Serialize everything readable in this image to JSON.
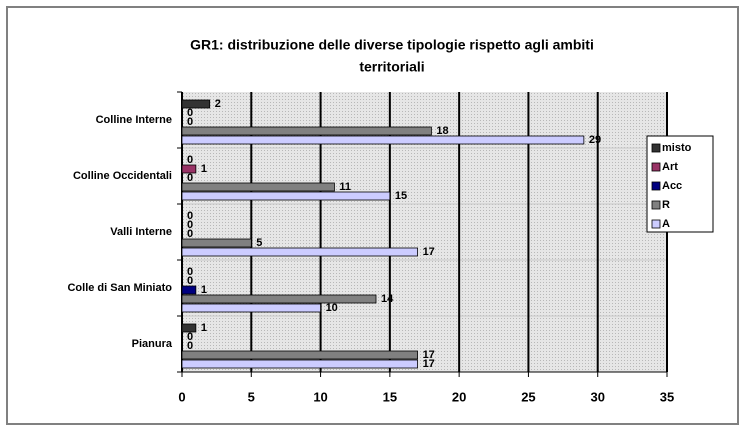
{
  "chart_data": {
    "type": "barh",
    "title": [
      "GR1: distribuzione delle diverse tipologie rispetto agli ambiti",
      "territoriali"
    ],
    "categories": [
      "Colline Interne",
      "Colline Occidentali",
      "Valli Interne",
      "Colle di San Miniato",
      "Pianura"
    ],
    "series": [
      {
        "name": "misto",
        "color": "#333333",
        "values": [
          2,
          0,
          0,
          0,
          1
        ]
      },
      {
        "name": "Art",
        "color": "#993366",
        "values": [
          0,
          1,
          0,
          0,
          0
        ]
      },
      {
        "name": "Acc",
        "color": "#000080",
        "values": [
          0,
          0,
          0,
          1,
          0
        ]
      },
      {
        "name": "R",
        "color": "#808080",
        "values": [
          18,
          11,
          5,
          14,
          17
        ]
      },
      {
        "name": "A",
        "color": "#ccccff",
        "values": [
          29,
          15,
          17,
          10,
          17
        ]
      }
    ],
    "xlim": [
      0,
      35
    ],
    "xticks": [
      0,
      5,
      10,
      15,
      20,
      25,
      30,
      35
    ],
    "grid": true,
    "legend": "right"
  }
}
